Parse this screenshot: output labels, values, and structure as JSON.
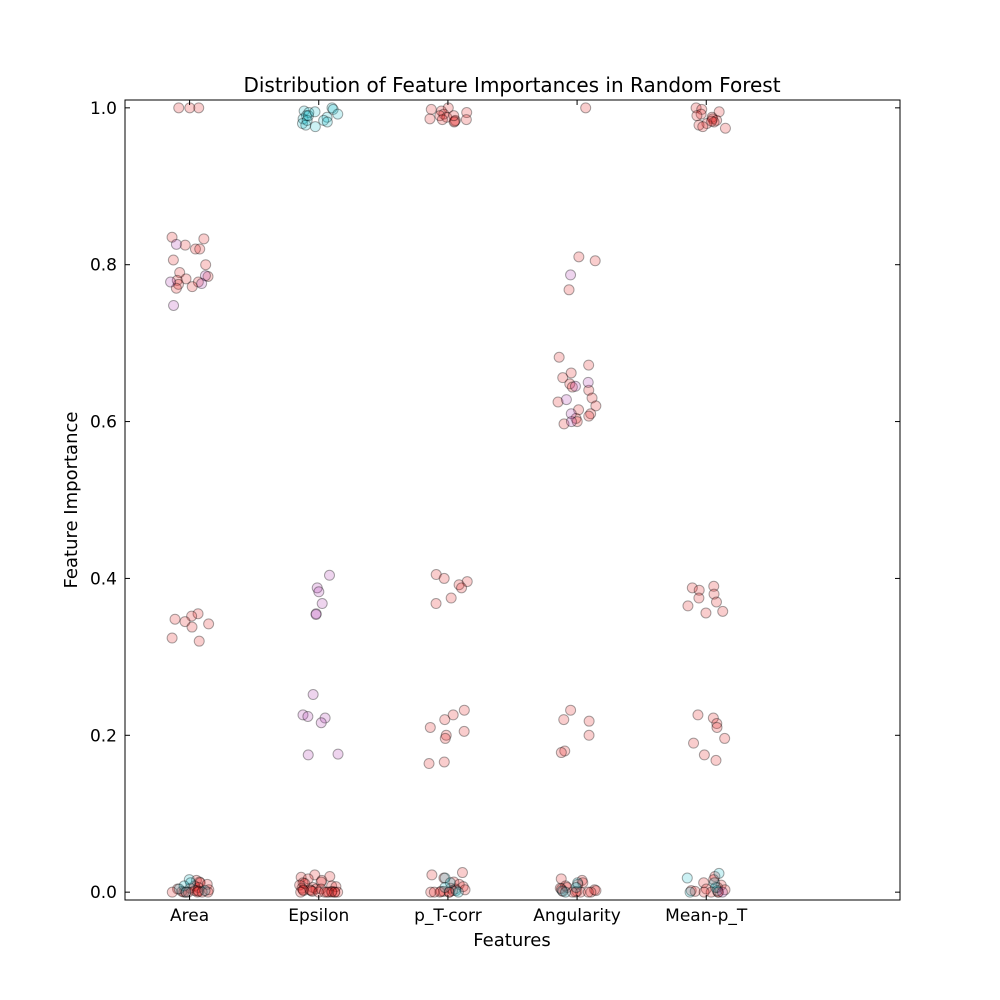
{
  "chart_data": {
    "type": "scatter",
    "title": "Distribution of Feature Importances in Random Forest",
    "xlabel": "Features",
    "ylabel": "Feature Importance",
    "categories": [
      "Area",
      "Epsilon",
      "p_T-corr",
      "Angularity",
      "Mean-p_T"
    ],
    "x_range": [
      -0.5,
      5.5
    ],
    "ylim": [
      -0.01,
      1.01
    ],
    "y_ticks": [
      0.0,
      0.2,
      0.4,
      0.6,
      0.8,
      1.0
    ],
    "y_tick_labels": [
      "0.0",
      "0.2",
      "0.4",
      "0.6",
      "0.8",
      "1.0"
    ],
    "grid": false,
    "legend": "none",
    "jitter": "horizontal jitter around each category position",
    "series": [
      {
        "color": "#e41a1c",
        "values": [
          [
            1.0,
            1.0,
            1.0,
            0.835,
            0.833,
            0.825,
            0.82,
            0.82,
            0.806,
            0.8,
            0.79,
            0.785,
            0.782,
            0.78,
            0.778,
            0.775,
            0.772,
            0.77,
            0.355,
            0.352,
            0.348,
            0.345,
            0.342,
            0.338,
            0.324,
            0.32,
            0.015,
            0.013,
            0.012,
            0.01,
            0.008,
            0.006,
            0.005,
            0.004,
            0.003,
            0.002,
            0.002,
            0.001,
            0.001,
            0.0,
            0.0,
            0.0,
            0.0,
            0.0,
            0.0,
            0.0
          ],
          [
            0.022,
            0.02,
            0.019,
            0.017,
            0.015,
            0.013,
            0.012,
            0.011,
            0.009,
            0.008,
            0.007,
            0.006,
            0.005,
            0.004,
            0.004,
            0.003,
            0.003,
            0.002,
            0.002,
            0.001,
            0.001,
            0.0,
            0.0,
            0.0,
            0.0,
            0.0,
            0.0,
            0.0,
            0.0,
            0.0
          ],
          [
            1.0,
            0.998,
            0.996,
            0.994,
            0.992,
            0.99,
            0.988,
            0.986,
            0.985,
            0.984,
            0.983,
            0.982,
            0.985,
            0.99,
            0.405,
            0.4,
            0.396,
            0.392,
            0.388,
            0.375,
            0.368,
            0.232,
            0.226,
            0.22,
            0.21,
            0.205,
            0.2,
            0.196,
            0.166,
            0.164,
            0.025,
            0.022,
            0.018,
            0.013,
            0.01,
            0.007,
            0.005,
            0.004,
            0.003,
            0.002,
            0.001,
            0.001,
            0.0,
            0.0,
            0.0,
            0.0,
            0.0
          ],
          [
            1.0,
            0.81,
            0.805,
            0.768,
            0.682,
            0.672,
            0.662,
            0.656,
            0.648,
            0.644,
            0.64,
            0.63,
            0.625,
            0.62,
            0.615,
            0.61,
            0.607,
            0.604,
            0.6,
            0.597,
            0.232,
            0.22,
            0.218,
            0.2,
            0.18,
            0.178,
            0.017,
            0.015,
            0.012,
            0.01,
            0.008,
            0.006,
            0.005,
            0.004,
            0.003,
            0.002,
            0.001,
            0.001,
            0.0,
            0.0,
            0.0,
            0.0,
            0.0
          ],
          [
            1.0,
            0.998,
            0.995,
            0.992,
            0.99,
            0.988,
            0.986,
            0.984,
            0.982,
            0.98,
            0.978,
            0.976,
            0.974,
            0.983,
            0.39,
            0.388,
            0.385,
            0.38,
            0.375,
            0.37,
            0.365,
            0.358,
            0.356,
            0.226,
            0.222,
            0.215,
            0.21,
            0.196,
            0.19,
            0.175,
            0.168,
            0.02,
            0.016,
            0.012,
            0.009,
            0.006,
            0.004,
            0.003,
            0.002,
            0.001,
            0.0,
            0.0,
            0.0,
            0.0
          ]
        ]
      },
      {
        "color": "#17becf",
        "values": [
          [
            0.016,
            0.012,
            0.008,
            0.004,
            0.002,
            0.0
          ],
          [
            1.0,
            0.998,
            0.996,
            0.994,
            0.992,
            0.99,
            0.988,
            0.986,
            0.984,
            0.982,
            0.98,
            0.978,
            0.976,
            0.984,
            0.99,
            0.995
          ],
          [
            0.018,
            0.012,
            0.006,
            0.002,
            0.0
          ],
          [
            0.012,
            0.006,
            0.002,
            0.0
          ],
          [
            0.024,
            0.018,
            0.012,
            0.006,
            0.002,
            0.0
          ]
        ]
      },
      {
        "color": "#b33db3",
        "values": [
          [
            0.826,
            0.786,
            0.778,
            0.776,
            0.748
          ],
          [
            0.404,
            0.388,
            0.383,
            0.368,
            0.355,
            0.354,
            0.252,
            0.226,
            0.224,
            0.222,
            0.216,
            0.176,
            0.175
          ],
          [],
          [
            0.787,
            0.65,
            0.645,
            0.628,
            0.61,
            0.6
          ],
          [
            0.0
          ]
        ]
      }
    ]
  }
}
